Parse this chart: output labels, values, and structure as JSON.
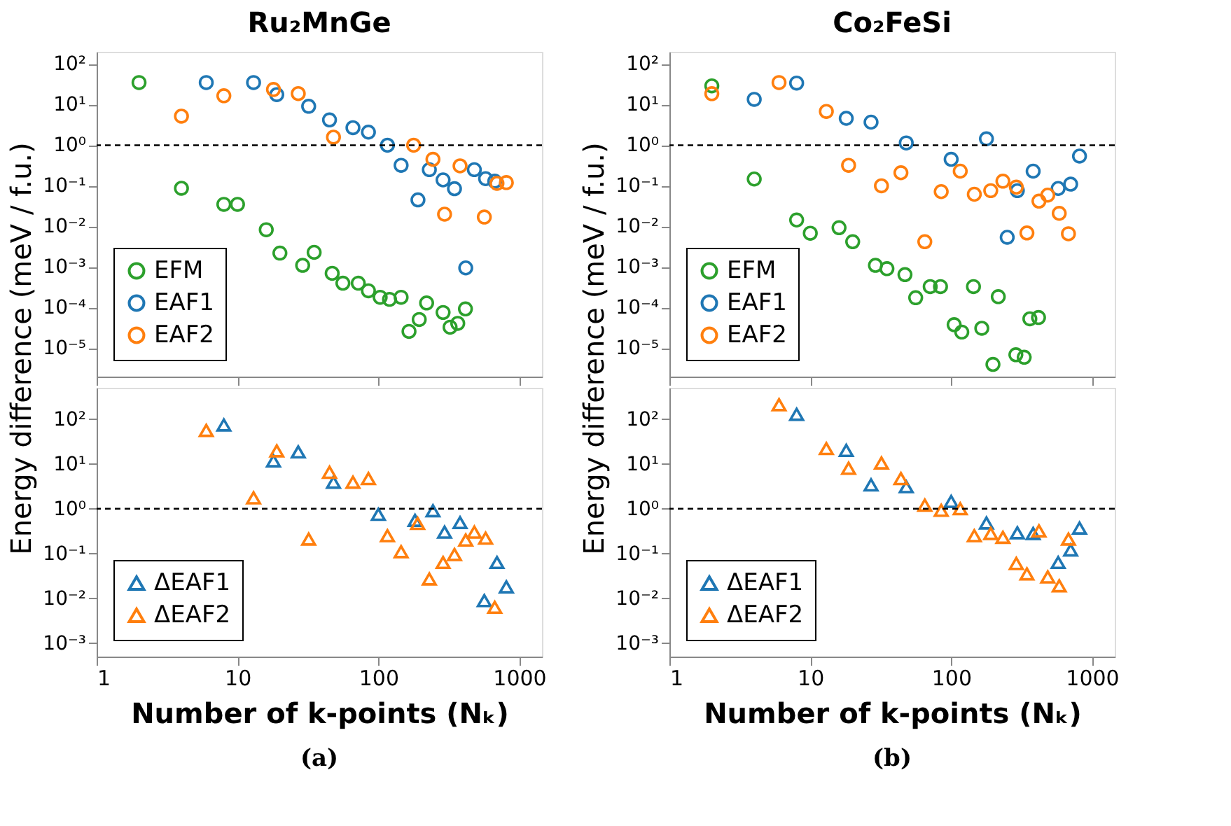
{
  "chart_data": [
    {
      "type": "scatter",
      "title": "Ru₂MnGe",
      "ylabel": "Energy difference (meV / f.u.)",
      "log": "xy",
      "marker": "circle",
      "legend": "bottom left",
      "tick_labels": "y",
      "xlim": [
        1,
        1450
      ],
      "ylim": [
        2e-06,
        200
      ],
      "xticks": [
        1,
        10,
        100,
        1000
      ],
      "yticks": [
        {
          "value": 1e-05,
          "label": "10⁻⁵"
        },
        {
          "value": 0.0001,
          "label": "10⁻⁴"
        },
        {
          "value": 0.001,
          "label": "10⁻³"
        },
        {
          "value": 0.01,
          "label": "10⁻²"
        },
        {
          "value": 0.1,
          "label": "10⁻¹"
        },
        {
          "value": 1,
          "label": "10⁰"
        },
        {
          "value": 10,
          "label": "10¹"
        },
        {
          "value": 100,
          "label": "10²"
        }
      ],
      "ref_lines": [
        {
          "axis": "y",
          "value": 1,
          "color": "#000000",
          "line_style": "dashed"
        }
      ],
      "series": [
        {
          "name": "EFM",
          "color": "#2ca02c",
          "x": [
            2,
            4,
            8,
            10,
            16,
            20,
            29,
            35,
            47,
            56,
            72,
            85,
            103,
            120,
            145,
            165,
            195,
            220,
            288,
            323,
            366,
            415
          ],
          "values": [
            35,
            0.087,
            0.035,
            0.035,
            0.0083,
            0.0022,
            0.0011,
            0.0023,
            0.0007,
            0.0004,
            0.0004,
            0.00026,
            0.00018,
            0.00016,
            0.00018,
            2.6e-05,
            5.1e-05,
            0.00013,
            7.6e-05,
            3.3e-05,
            4.1e-05,
            9.3e-05
          ]
        },
        {
          "name": "EAF1",
          "color": "#1f77b4",
          "x": [
            6,
            13,
            19,
            32,
            45,
            66,
            85,
            116,
            145,
            191,
            230,
            288,
            347,
            417,
            480,
            577,
            670
          ],
          "values": [
            35,
            35,
            17.6,
            9.1,
            4.2,
            2.7,
            2.1,
            1.0,
            0.32,
            0.045,
            0.25,
            0.14,
            0.085,
            0.00095,
            0.25,
            0.15,
            0.13
          ]
        },
        {
          "name": "EAF2",
          "color": "#ff7f0e",
          "x": [
            4,
            8,
            18,
            27,
            48,
            178,
            244,
            295,
            380,
            565,
            695,
            810
          ],
          "values": [
            5.2,
            16.5,
            23.6,
            18.7,
            1.58,
            1.0,
            0.45,
            0.02,
            0.31,
            0.017,
            0.115,
            0.12
          ]
        }
      ]
    },
    {
      "type": "scatter",
      "xlabel": "Number of k-points (Nₖ)",
      "annotations": [
        "(a)"
      ],
      "log": "xy",
      "marker": "triangle",
      "legend": "bottom left",
      "xlim": [
        1,
        1450
      ],
      "ylim": [
        0.0005,
        500
      ],
      "xticks": [
        1,
        10,
        100,
        1000
      ],
      "yticks": [
        {
          "value": 0.001,
          "label": "10⁻³"
        },
        {
          "value": 0.01,
          "label": "10⁻²"
        },
        {
          "value": 0.1,
          "label": "10⁻¹"
        },
        {
          "value": 1,
          "label": "10⁰"
        },
        {
          "value": 10,
          "label": "10¹"
        },
        {
          "value": 100,
          "label": "10²"
        }
      ],
      "ref_lines": [
        {
          "axis": "y",
          "value": 1,
          "color": "#000000",
          "line_style": "dashed"
        }
      ],
      "series": [
        {
          "name": "ΔEAF1",
          "color": "#1f77b4",
          "x": [
            8,
            18,
            27,
            48,
            100,
            182,
            244,
            295,
            380,
            565,
            695,
            810
          ],
          "values": [
            74,
            11.7,
            18.6,
            3.9,
            0.75,
            0.55,
            0.9,
            0.3,
            0.49,
            0.0089,
            0.063,
            0.018
          ]
        },
        {
          "name": "ΔEAF2",
          "color": "#ff7f0e",
          "x": [
            6,
            13,
            19,
            32,
            45,
            66,
            85,
            116,
            145,
            190,
            230,
            288,
            347,
            417,
            480,
            577,
            670
          ],
          "values": [
            56,
            1.75,
            19.5,
            0.21,
            6.5,
            3.9,
            4.7,
            0.25,
            0.11,
            0.47,
            0.027,
            0.063,
            0.095,
            0.2,
            0.3,
            0.22,
            0.0063
          ]
        }
      ]
    },
    {
      "type": "scatter",
      "title": "Co₂FeSi",
      "ylabel": "Energy difference (meV / f.u.)",
      "log": "xy",
      "marker": "circle",
      "legend": "bottom left",
      "tick_labels": "y",
      "xlim": [
        1,
        1450
      ],
      "ylim": [
        2e-06,
        200
      ],
      "xticks": [
        1,
        10,
        100,
        1000
      ],
      "yticks": [
        {
          "value": 1e-05,
          "label": "10⁻⁵"
        },
        {
          "value": 0.0001,
          "label": "10⁻⁴"
        },
        {
          "value": 0.001,
          "label": "10⁻³"
        },
        {
          "value": 0.01,
          "label": "10⁻²"
        },
        {
          "value": 0.1,
          "label": "10⁻¹"
        },
        {
          "value": 1,
          "label": "10⁰"
        },
        {
          "value": 10,
          "label": "10¹"
        },
        {
          "value": 100,
          "label": "10²"
        }
      ],
      "ref_lines": [
        {
          "axis": "y",
          "value": 1,
          "color": "#000000",
          "line_style": "dashed"
        }
      ],
      "series": [
        {
          "name": "EFM",
          "color": "#2ca02c",
          "x": [
            2,
            4,
            8,
            10,
            16,
            20,
            29,
            35,
            47,
            56,
            71,
            84,
            105,
            119,
            144,
            165,
            198,
            216,
            288,
            330,
            362,
            417
          ],
          "values": [
            29,
            0.147,
            0.0144,
            0.0068,
            0.0093,
            0.0042,
            0.0011,
            0.00091,
            0.00065,
            0.000175,
            0.00033,
            0.00033,
            3.8e-05,
            2.5e-05,
            0.00033,
            3.1e-05,
            4e-06,
            0.000186,
            6.9e-06,
            6e-06,
            5.3e-05,
            5.7e-05
          ]
        },
        {
          "name": "EAF1",
          "color": "#1f77b4",
          "x": [
            4,
            8,
            18,
            27,
            48,
            100,
            178,
            250,
            295,
            382,
            575,
            705,
            815
          ],
          "values": [
            13.5,
            34,
            4.6,
            3.7,
            1.14,
            0.45,
            1.44,
            0.0054,
            0.076,
            0.23,
            0.086,
            0.11,
            0.54
          ]
        },
        {
          "name": "EAF2",
          "color": "#ff7f0e",
          "x": [
            2,
            6,
            13,
            18.7,
            32,
            44,
            65,
            85,
            116,
            146,
            191,
            233,
            290,
            345,
            420,
            485,
            585,
            680
          ],
          "values": [
            18.6,
            35,
            6.8,
            0.32,
            0.1,
            0.21,
            0.0042,
            0.072,
            0.23,
            0.062,
            0.076,
            0.13,
            0.093,
            0.0069,
            0.042,
            0.059,
            0.021,
            0.0066
          ]
        }
      ]
    },
    {
      "type": "scatter",
      "xlabel": "Number of k-points (Nₖ)",
      "annotations": [
        "(b)"
      ],
      "log": "xy",
      "marker": "triangle",
      "legend": "bottom left",
      "xlim": [
        1,
        1450
      ],
      "ylim": [
        0.0005,
        500
      ],
      "xticks": [
        1,
        10,
        100,
        1000
      ],
      "yticks": [
        {
          "value": 0.001,
          "label": "10⁻³"
        },
        {
          "value": 0.01,
          "label": "10⁻²"
        },
        {
          "value": 0.1,
          "label": "10⁻¹"
        },
        {
          "value": 1,
          "label": "10⁰"
        },
        {
          "value": 10,
          "label": "10¹"
        },
        {
          "value": 100,
          "label": "10²"
        }
      ],
      "ref_lines": [
        {
          "axis": "y",
          "value": 1,
          "color": "#000000",
          "line_style": "dashed"
        }
      ],
      "series": [
        {
          "name": "ΔEAF1",
          "color": "#1f77b4",
          "x": [
            8,
            18,
            27,
            48,
            100,
            178,
            295,
            382,
            575,
            705,
            815
          ],
          "values": [
            128,
            20,
            3.4,
            3.1,
            1.45,
            0.48,
            0.29,
            0.28,
            0.063,
            0.12,
            0.37
          ]
        },
        {
          "name": "ΔEAF2",
          "color": "#ff7f0e",
          "x": [
            6,
            13,
            18.7,
            32,
            44,
            65,
            85,
            116,
            146,
            191,
            233,
            290,
            345,
            420,
            485,
            585,
            680
          ],
          "values": [
            210,
            22,
            8,
            10.5,
            4.7,
            1.2,
            0.92,
            1.0,
            0.25,
            0.28,
            0.23,
            0.06,
            0.035,
            0.32,
            0.03,
            0.019,
            0.21
          ]
        }
      ]
    }
  ]
}
